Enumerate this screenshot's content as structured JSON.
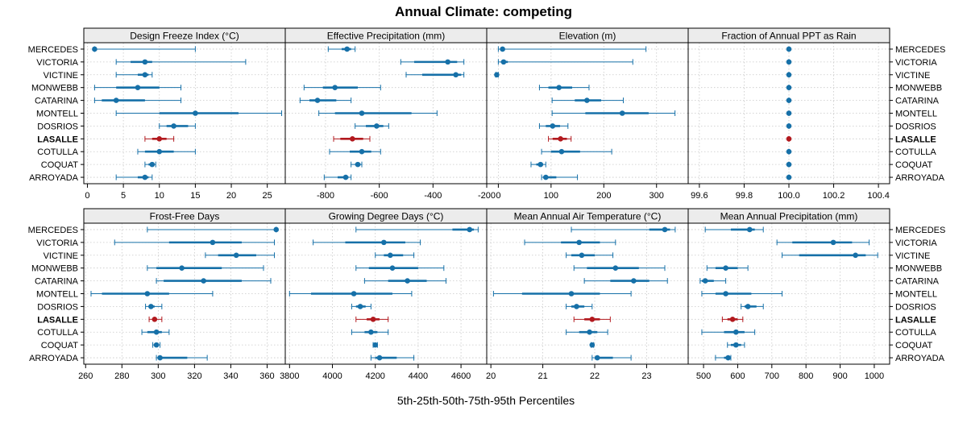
{
  "figure": {
    "title": "Annual Climate: competing",
    "xlabel": "5th-25th-50th-75th-95th Percentiles"
  },
  "colors": {
    "normal": "#1670a8",
    "highlight": "#b2191e",
    "strip": "#ececec",
    "grid": "#c8c8c8"
  },
  "chart_data": {
    "type": "interval-dotplot",
    "title": "Annual Climate: competing",
    "xlabel": "5th-25th-50th-75th-95th Percentiles",
    "percentiles": [
      "p5",
      "p25",
      "p50",
      "p75",
      "p95"
    ],
    "sites": [
      "MERCEDES",
      "VICTORIA",
      "VICTINE",
      "MONWEBB",
      "CATARINA",
      "MONTELL",
      "DOSRIOS",
      "LASALLE",
      "COTULLA",
      "COQUAT",
      "ARROYADA"
    ],
    "highlight_site": "LASALLE",
    "panels": [
      {
        "title": "Design Freeze Index (°C)",
        "xlim": [
          -0.5,
          27.5
        ],
        "ticks": [
          0,
          5,
          10,
          15,
          20,
          25
        ],
        "tick_labels": [
          "0",
          "5",
          "10",
          "15",
          "20",
          "25"
        ],
        "data": [
          [
            1,
            1,
            1,
            1,
            15
          ],
          [
            4,
            6,
            8,
            9,
            22
          ],
          [
            4,
            7,
            8,
            8.5,
            9
          ],
          [
            1,
            4,
            7,
            10,
            13
          ],
          [
            1,
            2,
            4,
            8,
            13
          ],
          [
            4,
            10,
            15,
            21,
            27
          ],
          [
            10,
            11,
            12,
            14,
            15
          ],
          [
            8,
            9,
            10,
            11,
            12
          ],
          [
            7,
            8,
            10,
            12,
            15
          ],
          [
            8,
            8.5,
            9,
            9.3,
            9.5
          ],
          [
            4,
            7,
            8,
            8.5,
            9
          ]
        ]
      },
      {
        "title": "Effective Precipitation (mm)",
        "xlim": [
          -950,
          -200
        ],
        "ticks": [
          -800,
          -600,
          -400,
          -200
        ],
        "tick_labels": [
          "-800",
          "-600",
          "-400",
          "-200"
        ],
        "data": [
          [
            -790,
            -740,
            -720,
            -705,
            -690
          ],
          [
            -520,
            -470,
            -345,
            -310,
            -285
          ],
          [
            -500,
            -440,
            -315,
            -295,
            -285
          ],
          [
            -880,
            -810,
            -765,
            -680,
            -595
          ],
          [
            -895,
            -860,
            -830,
            -760,
            -705
          ],
          [
            -825,
            -765,
            -665,
            -480,
            -385
          ],
          [
            -690,
            -650,
            -610,
            -585,
            -565
          ],
          [
            -770,
            -745,
            -700,
            -660,
            -635
          ],
          [
            -785,
            -710,
            -665,
            -630,
            -595
          ],
          [
            -705,
            -690,
            -680,
            -670,
            -665
          ],
          [
            -805,
            -755,
            -725,
            -715,
            -705
          ]
        ]
      },
      {
        "title": "Elevation (m)",
        "xlim": [
          -22,
          360
        ],
        "ticks": [
          0,
          100,
          200,
          300
        ],
        "tick_labels": [
          "0",
          "100",
          "200",
          "300"
        ],
        "data": [
          [
            0,
            5,
            8,
            10,
            280
          ],
          [
            0,
            5,
            10,
            18,
            255
          ],
          [
            -5,
            -4,
            -3,
            -2,
            0
          ],
          [
            78,
            95,
            115,
            140,
            172
          ],
          [
            102,
            145,
            168,
            195,
            237
          ],
          [
            102,
            165,
            235,
            285,
            335
          ],
          [
            78,
            90,
            103,
            117,
            132
          ],
          [
            95,
            103,
            118,
            130,
            138
          ],
          [
            82,
            100,
            120,
            155,
            215
          ],
          [
            62,
            72,
            80,
            85,
            90
          ],
          [
            82,
            85,
            90,
            110,
            150
          ]
        ]
      },
      {
        "title": "Fraction of Annual PPT as Rain",
        "xlim": [
          99.55,
          100.45
        ],
        "ticks": [
          99.6,
          99.8,
          100.0,
          100.2,
          100.4
        ],
        "tick_labels": [
          "99.6",
          "99.8",
          "100.0",
          "100.2",
          "100.4"
        ],
        "data": [
          [
            100,
            100,
            100,
            100,
            100
          ],
          [
            100,
            100,
            100,
            100,
            100
          ],
          [
            100,
            100,
            100,
            100,
            100
          ],
          [
            100,
            100,
            100,
            100,
            100
          ],
          [
            100,
            100,
            100,
            100,
            100
          ],
          [
            100,
            100,
            100,
            100,
            100
          ],
          [
            100,
            100,
            100,
            100,
            100
          ],
          [
            100,
            100,
            100,
            100,
            100
          ],
          [
            100,
            100,
            100,
            100,
            100
          ],
          [
            100,
            100,
            100,
            100,
            100
          ],
          [
            100,
            100,
            100,
            100,
            100
          ]
        ]
      },
      {
        "title": "Frost-Free Days",
        "xlim": [
          259,
          370
        ],
        "ticks": [
          260,
          280,
          300,
          320,
          340,
          360
        ],
        "tick_labels": [
          "260",
          "280",
          "300",
          "320",
          "340",
          "360"
        ],
        "data": [
          [
            294,
            365,
            365,
            365,
            365
          ],
          [
            276,
            306,
            330,
            346,
            364
          ],
          [
            326,
            333,
            343,
            354,
            364
          ],
          [
            294,
            299,
            313,
            335,
            358
          ],
          [
            299,
            303,
            325,
            346,
            362
          ],
          [
            263,
            269,
            294,
            306,
            330
          ],
          [
            293,
            295,
            296,
            298,
            302
          ],
          [
            295,
            297,
            298,
            299,
            302
          ],
          [
            291,
            294,
            299,
            302,
            306
          ],
          [
            297,
            298,
            299,
            300,
            301
          ],
          [
            299,
            300,
            301,
            316,
            327
          ]
        ]
      },
      {
        "title": "Growing Degree Days (°C)",
        "xlim": [
          3780,
          4720
        ],
        "ticks": [
          3800,
          4000,
          4200,
          4400,
          4600
        ],
        "tick_labels": [
          "3800",
          "4000",
          "4200",
          "4400",
          "4600"
        ],
        "data": [
          [
            4110,
            4560,
            4640,
            4660,
            4680
          ],
          [
            3910,
            4060,
            4240,
            4340,
            4410
          ],
          [
            4200,
            4240,
            4270,
            4330,
            4380
          ],
          [
            4110,
            4170,
            4280,
            4400,
            4520
          ],
          [
            4150,
            4260,
            4350,
            4440,
            4530
          ],
          [
            3800,
            3900,
            4100,
            4280,
            4370
          ],
          [
            4090,
            4110,
            4130,
            4155,
            4180
          ],
          [
            4110,
            4160,
            4190,
            4220,
            4260
          ],
          [
            4090,
            4150,
            4180,
            4210,
            4260
          ],
          [
            4190,
            4195,
            4200,
            4205,
            4210
          ],
          [
            4180,
            4200,
            4220,
            4300,
            4380
          ]
        ]
      },
      {
        "title": "Mean Annual Air Temperature (°C)",
        "xlim": [
          19.92,
          23.8
        ],
        "ticks": [
          20,
          21,
          22,
          23
        ],
        "tick_labels": [
          "20",
          "21",
          "22",
          "23"
        ],
        "data": [
          [
            21.55,
            23.05,
            23.35,
            23.45,
            23.55
          ],
          [
            20.65,
            21.35,
            21.7,
            22.1,
            22.4
          ],
          [
            21.45,
            21.55,
            21.75,
            22.0,
            22.35
          ],
          [
            21.6,
            21.85,
            22.4,
            22.85,
            23.35
          ],
          [
            21.8,
            22.3,
            22.75,
            23.05,
            23.4
          ],
          [
            20.05,
            20.6,
            21.55,
            22.1,
            22.7
          ],
          [
            21.45,
            21.55,
            21.65,
            21.8,
            21.95
          ],
          [
            21.6,
            21.8,
            21.95,
            22.1,
            22.3
          ],
          [
            21.45,
            21.7,
            21.9,
            22.05,
            22.25
          ],
          [
            21.93,
            21.94,
            21.95,
            21.96,
            21.98
          ],
          [
            21.95,
            22.0,
            22.05,
            22.35,
            22.7
          ]
        ]
      },
      {
        "title": "Mean Annual Precipitation (mm)",
        "xlim": [
          455,
          1045
        ],
        "ticks": [
          500,
          600,
          700,
          800,
          900,
          1000
        ],
        "tick_labels": [
          "500",
          "600",
          "700",
          "800",
          "900",
          "1000"
        ],
        "data": [
          [
            505,
            580,
            635,
            650,
            675
          ],
          [
            715,
            760,
            880,
            935,
            985
          ],
          [
            730,
            780,
            945,
            975,
            1010
          ],
          [
            510,
            535,
            565,
            600,
            630
          ],
          [
            490,
            495,
            505,
            530,
            565
          ],
          [
            495,
            535,
            565,
            640,
            730
          ],
          [
            610,
            620,
            630,
            655,
            675
          ],
          [
            555,
            570,
            585,
            600,
            615
          ],
          [
            495,
            560,
            595,
            620,
            650
          ],
          [
            570,
            580,
            595,
            610,
            620
          ],
          [
            535,
            560,
            572,
            578,
            580
          ]
        ]
      }
    ]
  }
}
